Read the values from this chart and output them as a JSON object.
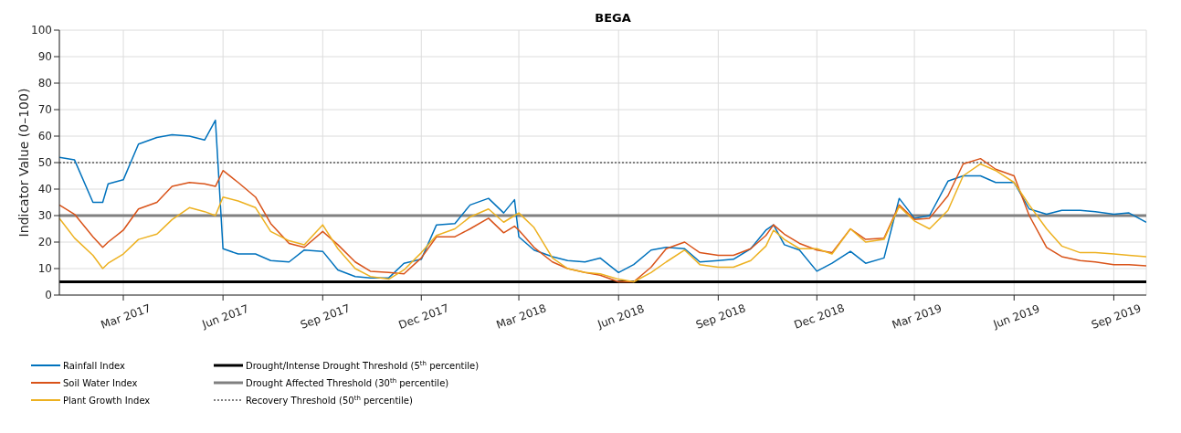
{
  "chart_data": {
    "type": "line",
    "title": "BEGA",
    "ylabel": "Indicator Value (0–100)",
    "x": [
      "2017-01-01",
      "2017-01-15",
      "2017-02-01",
      "2017-02-10",
      "2017-02-15",
      "2017-03-01",
      "2017-03-15",
      "2017-04-01",
      "2017-04-15",
      "2017-05-01",
      "2017-05-15",
      "2017-05-25",
      "2017-06-01",
      "2017-06-15",
      "2017-07-01",
      "2017-07-15",
      "2017-08-01",
      "2017-08-15",
      "2017-09-01",
      "2017-09-15",
      "2017-10-01",
      "2017-10-15",
      "2017-11-01",
      "2017-11-15",
      "2017-12-01",
      "2017-12-15",
      "2018-01-01",
      "2018-01-15",
      "2018-02-01",
      "2018-02-15",
      "2018-02-25",
      "2018-03-01",
      "2018-03-15",
      "2018-04-01",
      "2018-04-15",
      "2018-05-01",
      "2018-05-15",
      "2018-06-01",
      "2018-06-15",
      "2018-07-01",
      "2018-07-15",
      "2018-08-01",
      "2018-08-15",
      "2018-09-01",
      "2018-09-15",
      "2018-10-01",
      "2018-10-15",
      "2018-10-22",
      "2018-11-01",
      "2018-11-15",
      "2018-12-01",
      "2018-12-15",
      "2019-01-01",
      "2019-01-15",
      "2019-02-01",
      "2019-02-15",
      "2019-03-01",
      "2019-03-15",
      "2019-04-01",
      "2019-04-15",
      "2019-05-01",
      "2019-05-15",
      "2019-06-01",
      "2019-06-15",
      "2019-07-01",
      "2019-07-15",
      "2019-08-01",
      "2019-08-15",
      "2019-09-01",
      "2019-09-15",
      "2019-10-01"
    ],
    "series": [
      {
        "name": "Rainfall Index",
        "color": "#0072bd",
        "values": [
          52,
          51,
          35,
          35,
          42,
          43.5,
          57,
          59.5,
          60.5,
          60,
          58.5,
          66,
          17.5,
          15.5,
          15.5,
          13,
          12.5,
          17,
          16.5,
          9.5,
          7,
          6.5,
          6.5,
          12,
          13.5,
          26.5,
          27,
          34,
          36.5,
          31,
          36,
          22,
          17,
          14.5,
          13,
          12.5,
          14,
          8.5,
          11.5,
          17,
          18,
          17.5,
          12.5,
          13,
          13.5,
          17.5,
          24.5,
          26.5,
          19,
          17,
          9,
          12,
          16.5,
          12,
          14,
          36.5,
          29,
          30,
          43,
          45,
          45,
          42.5,
          42.5,
          32.5,
          30.5,
          32,
          32,
          31.5,
          30.5,
          31,
          27.5
        ]
      },
      {
        "name": "Soil Water Index",
        "color": "#d95319",
        "values": [
          34,
          30.5,
          22,
          18,
          20,
          24.5,
          32.5,
          35,
          41,
          42.5,
          42,
          41,
          47,
          42.5,
          37,
          27,
          19.5,
          18,
          24,
          19,
          12.5,
          9,
          8.5,
          8,
          14,
          22,
          22,
          25,
          29,
          23.5,
          26,
          24.5,
          18,
          12.5,
          10,
          8.5,
          7.5,
          5,
          5,
          10.5,
          17.5,
          20,
          16,
          15,
          15,
          17.5,
          22.5,
          26.5,
          23,
          19.5,
          17,
          16,
          25,
          21,
          21.5,
          34,
          28.5,
          29,
          37.5,
          49.5,
          51.5,
          47.5,
          45,
          30,
          18,
          14.5,
          13,
          12.5,
          11.5,
          11.5,
          11
        ]
      },
      {
        "name": "Plant Growth Index",
        "color": "#edb120",
        "values": [
          29,
          21.5,
          15,
          10,
          12,
          15.5,
          21,
          23,
          28.5,
          33,
          31.5,
          30,
          37,
          35.5,
          33,
          24,
          20.5,
          19,
          26.5,
          17.5,
          10,
          7,
          6,
          9.5,
          16,
          22.5,
          25,
          29.5,
          32.5,
          27.5,
          30,
          31,
          25.5,
          14,
          10,
          8.5,
          8,
          6,
          5,
          8.5,
          12.5,
          17,
          11.5,
          10.5,
          10.5,
          13,
          18.5,
          24.5,
          21,
          17.5,
          17.5,
          15.5,
          25,
          20,
          21,
          33.5,
          28,
          25,
          32,
          45,
          49.5,
          47,
          42.5,
          34,
          25,
          18.5,
          16,
          16,
          15.5,
          15,
          14.5
        ]
      }
    ],
    "ref_lines": [
      {
        "axis": "y",
        "value": 5,
        "label": "Drought/Intense Drought Threshold (5$^{th}$ percentile)",
        "color": "#000000",
        "line_style": "solid"
      },
      {
        "axis": "y",
        "value": 30,
        "label": "Drought Affected Threshold (30$^{th}$ percentile)",
        "color": "#808080",
        "line_style": "solid"
      },
      {
        "axis": "y",
        "value": 50,
        "label": "Recovery Threshold (50$^{th}$ percentile)",
        "color": "#808080",
        "line_style": "dotted"
      }
    ],
    "xlim": [
      "2017-01-01",
      "2019-10-01"
    ],
    "xticks": [
      {
        "value": "2017-03-01",
        "label": "Mar 2017"
      },
      {
        "value": "2017-06-01",
        "label": "Jun 2017"
      },
      {
        "value": "2017-09-01",
        "label": "Sep 2017"
      },
      {
        "value": "2017-12-01",
        "label": "Dec 2017"
      },
      {
        "value": "2018-03-01",
        "label": "Mar 2018"
      },
      {
        "value": "2018-06-01",
        "label": "Jun 2018"
      },
      {
        "value": "2018-09-01",
        "label": "Sep 2018"
      },
      {
        "value": "2018-12-01",
        "label": "Dec 2018"
      },
      {
        "value": "2019-03-01",
        "label": "Mar 2019"
      },
      {
        "value": "2019-06-01",
        "label": "Jun 2019"
      },
      {
        "value": "2019-09-01",
        "label": "Sep 2019"
      }
    ],
    "ylim": [
      0,
      100
    ],
    "yticks": [
      0,
      10,
      20,
      30,
      40,
      50,
      60,
      70,
      80,
      90,
      100
    ],
    "grid": true,
    "legend": "bottom",
    "marker": "none",
    "line_style": "solid"
  }
}
